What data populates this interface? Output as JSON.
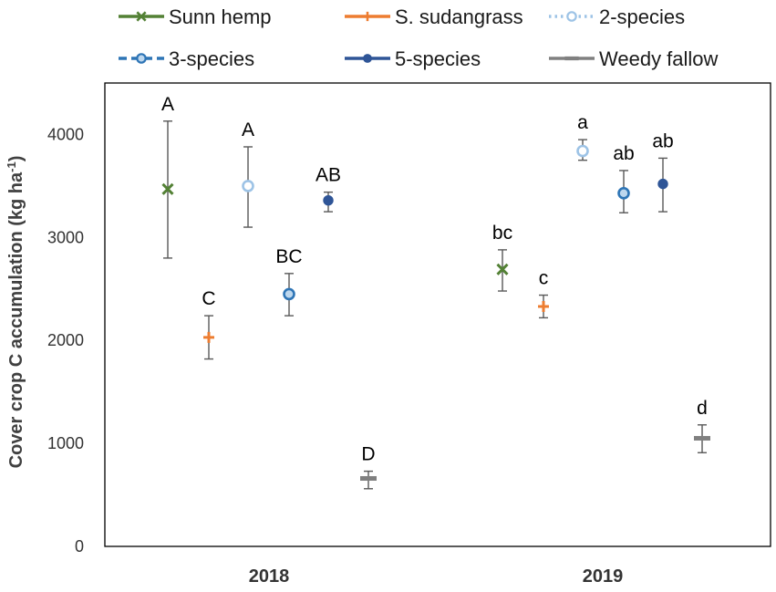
{
  "chart_data": {
    "type": "scatter",
    "title": "",
    "xlabel": "",
    "ylabel": "Cover crop C accumulation (kg ha",
    "ylabel_sup": "-1",
    "ylabel_close": ")",
    "ylim": [
      0,
      4500
    ],
    "yticks": [
      0,
      1000,
      2000,
      3000,
      4000
    ],
    "yticklabels": [
      "0",
      "1000",
      "2000",
      "3000",
      "4000"
    ],
    "categories": [
      "2018",
      "2019"
    ],
    "legend_position": "top",
    "series": [
      {
        "name": "Sunn hemp",
        "color": "#538135",
        "marker": "x",
        "line": "solid",
        "values": [
          3470,
          2690
        ],
        "err_low": [
          2800,
          2480
        ],
        "err_high": [
          4130,
          2880
        ],
        "labels": [
          "A",
          "bc"
        ]
      },
      {
        "name": "S. sudangrass",
        "color": "#ED7D31",
        "marker": "plus",
        "line": "solid",
        "values": [
          2030,
          2330
        ],
        "err_low": [
          1820,
          2220
        ],
        "err_high": [
          2240,
          2440
        ],
        "labels": [
          "C",
          "c"
        ]
      },
      {
        "name": "2-species",
        "color": "#9DC3E6",
        "marker": "circle-open",
        "line": "dotted",
        "values": [
          3500,
          3840
        ],
        "err_low": [
          3100,
          3750
        ],
        "err_high": [
          3880,
          3950
        ],
        "labels": [
          "A",
          "a"
        ]
      },
      {
        "name": "3-species",
        "color": "#2E75B6",
        "marker": "circle-light",
        "line": "dashed",
        "values": [
          2450,
          3430
        ],
        "err_low": [
          2240,
          3240
        ],
        "err_high": [
          2650,
          3650
        ],
        "labels": [
          "BC",
          "ab"
        ]
      },
      {
        "name": "5-species",
        "color": "#2F5597",
        "marker": "circle",
        "line": "solid",
        "values": [
          3360,
          3520
        ],
        "err_low": [
          3250,
          3250
        ],
        "err_high": [
          3440,
          3770
        ],
        "labels": [
          "AB",
          "ab"
        ]
      },
      {
        "name": "Weedy fallow",
        "color": "#808080",
        "marker": "dash",
        "line": "solid",
        "values": [
          660,
          1050
        ],
        "err_low": [
          560,
          910
        ],
        "err_high": [
          730,
          1180
        ],
        "labels": [
          "D",
          "d"
        ]
      }
    ]
  }
}
